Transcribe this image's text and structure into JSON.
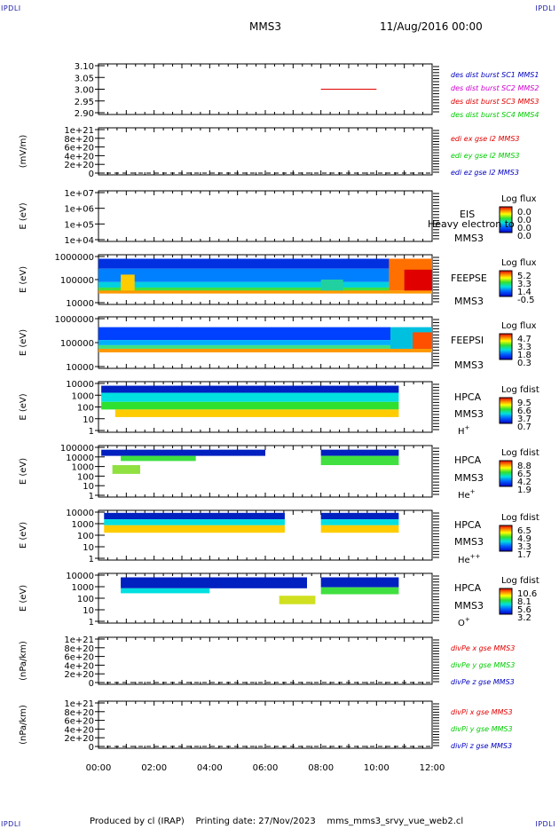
{
  "corners": {
    "tl": "IPDLI",
    "tr": "IPDLI",
    "bl": "IPDLI",
    "br": "IPDLI"
  },
  "header": {
    "spacecraft": "MMS3",
    "datetime": "11/Aug/2016 00:00"
  },
  "footer": {
    "text": "Produced by cl (IRAP)    Printing date: 27/Nov/2023    mms_mms3_srvy_vue_web2.cl"
  },
  "colors": {
    "red": "#e00000",
    "magenta": "#d000d0",
    "green": "#00cc00",
    "blue": "#0000c0"
  },
  "chart_data": {
    "type": "line",
    "x_axis": {
      "ticks": [
        "00:00",
        "02:00",
        "04:00",
        "06:00",
        "08:00",
        "10:00",
        "12:00"
      ],
      "range_hours": [
        0,
        12
      ]
    },
    "panels": [
      {
        "id": "p1",
        "type": "line",
        "yticks": [
          "3.10",
          "3.05",
          "3.00",
          "2.95",
          "2.90"
        ],
        "ylim": [
          2.9,
          3.1
        ],
        "legend": [
          {
            "text": "des dist burst SC1 MMS1",
            "color": "#0000c0"
          },
          {
            "text": "des dist burst SC2 MMS2",
            "color": "#d000d0"
          },
          {
            "text": "des dist burst SC3 MMS3",
            "color": "#e00000"
          },
          {
            "text": "des dist burst SC4 MMS4",
            "color": "#00cc00"
          }
        ],
        "series": [
          {
            "name": "des dist burst SC3 MMS3",
            "x": [
              8.0,
              10.0
            ],
            "y": [
              3.0,
              3.0
            ]
          }
        ]
      },
      {
        "id": "p2",
        "type": "line",
        "ylabel": "(mV/m)",
        "yticks": [
          "1e+21",
          "8e+20",
          "6e+20",
          "4e+20",
          "2e+20",
          "0"
        ],
        "ylim": [
          0,
          1e+21
        ],
        "legend": [
          {
            "text": "edi ex gse l2 MMS3",
            "color": "#e00000"
          },
          {
            "text": "edi ey gse l2 MMS3",
            "color": "#00cc00"
          },
          {
            "text": "edi ez gse l2 MMS3",
            "color": "#0000c0"
          }
        ]
      },
      {
        "id": "p3",
        "type": "heatmap",
        "ylabel": "E (eV)",
        "scale": "log",
        "yticks": [
          "1e+07",
          "1e+06",
          "1e+05",
          "1e+04"
        ],
        "labels": [
          "EIS",
          "MMS3"
        ],
        "overlay": "Heavy electron to",
        "colorbar": {
          "title": "Log flux",
          "ticks": [
            "0.0",
            "0.0",
            "0.0",
            "0.0"
          ]
        }
      },
      {
        "id": "p4",
        "type": "heatmap",
        "ylabel": "E (eV)",
        "scale": "log",
        "yticks": [
          "1000000",
          "100000",
          "10000"
        ],
        "labels": [
          "FEEPSE",
          "MMS3"
        ],
        "colorbar": {
          "title": "Log flux",
          "ticks": [
            "5.2",
            "3.3",
            "1.4",
            "-0.5"
          ]
        }
      },
      {
        "id": "p5",
        "type": "heatmap",
        "ylabel": "E (eV)",
        "scale": "log",
        "yticks": [
          "1000000",
          "100000",
          "10000"
        ],
        "labels": [
          "FEEPSI",
          "MMS3"
        ],
        "colorbar": {
          "title": "Log flux",
          "ticks": [
            "4.7",
            "3.3",
            "1.8",
            "0.3"
          ]
        }
      },
      {
        "id": "p6",
        "type": "heatmap",
        "ylabel": "E (eV)",
        "scale": "log",
        "yticks": [
          "10000",
          "1000",
          "100",
          "10",
          "1"
        ],
        "labels": [
          "HPCA",
          "MMS3"
        ],
        "species": "H",
        "species_sup": "+",
        "colorbar": {
          "title": "Log fdist",
          "ticks": [
            "9.5",
            "6.6",
            "3.7",
            "0.7"
          ]
        }
      },
      {
        "id": "p7",
        "type": "heatmap",
        "ylabel": "E (eV)",
        "scale": "log",
        "yticks": [
          "100000",
          "10000",
          "1000",
          "100",
          "10",
          "1"
        ],
        "labels": [
          "HPCA",
          "MMS3"
        ],
        "species": "He",
        "species_sup": "+",
        "colorbar": {
          "title": "Log fdist",
          "ticks": [
            "8.8",
            "6.5",
            "4.2",
            "1.9"
          ]
        }
      },
      {
        "id": "p8",
        "type": "heatmap",
        "ylabel": "E (eV)",
        "scale": "log",
        "yticks": [
          "10000",
          "1000",
          "100",
          "10",
          "1"
        ],
        "labels": [
          "HPCA",
          "MMS3"
        ],
        "species": "He",
        "species_sup": "++",
        "colorbar": {
          "title": "Log fdist",
          "ticks": [
            "6.5",
            "4.9",
            "3.3",
            "1.7"
          ]
        }
      },
      {
        "id": "p9",
        "type": "heatmap",
        "ylabel": "E (eV)",
        "scale": "log",
        "yticks": [
          "10000",
          "1000",
          "100",
          "10",
          "1"
        ],
        "labels": [
          "HPCA",
          "MMS3"
        ],
        "species": "O",
        "species_sup": "+",
        "colorbar": {
          "title": "Log fdist",
          "ticks": [
            "10.6",
            "8.1",
            "5.6",
            "3.2"
          ]
        }
      },
      {
        "id": "p10",
        "type": "line",
        "ylabel": "(nPa/km)",
        "yticks": [
          "1e+21",
          "8e+20",
          "6e+20",
          "4e+20",
          "2e+20",
          "0"
        ],
        "ylim": [
          0,
          1e+21
        ],
        "legend": [
          {
            "text": "divPe x gse MMS3",
            "color": "#e00000"
          },
          {
            "text": "divPe y gse MMS3",
            "color": "#00cc00"
          },
          {
            "text": "divPe z gse MMS3",
            "color": "#0000c0"
          }
        ]
      },
      {
        "id": "p11",
        "type": "line",
        "ylabel": "(nPa/km)",
        "yticks": [
          "1e+21",
          "8e+20",
          "6e+20",
          "4e+20",
          "2e+20",
          "0"
        ],
        "ylim": [
          0,
          1e+21
        ],
        "legend": [
          {
            "text": "divPi x gse MMS3",
            "color": "#e00000"
          },
          {
            "text": "divPi y gse MMS3",
            "color": "#00cc00"
          },
          {
            "text": "divPi z gse MMS3",
            "color": "#0000c0"
          }
        ]
      }
    ]
  }
}
